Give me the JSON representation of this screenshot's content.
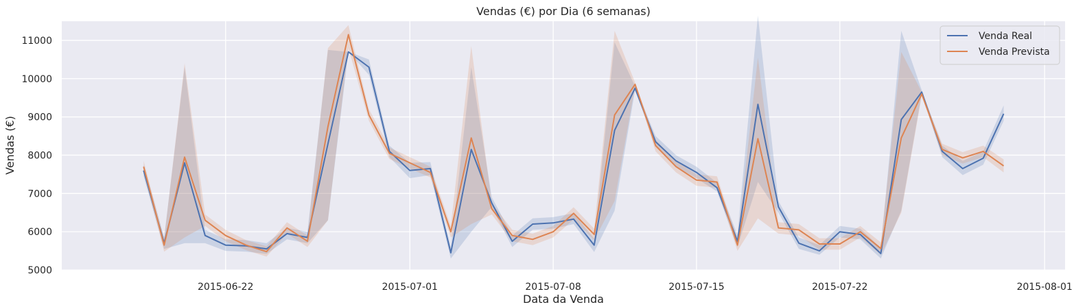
{
  "chart_data": {
    "type": "line",
    "title": "Vendas (€) por Dia (6 semanas)",
    "xlabel": "Data da Venda",
    "ylabel": "Vendas (€)",
    "ylim": [
      5000,
      11500
    ],
    "xlim": [
      "2015-06-14",
      "2015-08-02"
    ],
    "x_ticks": [
      "2015-06-22",
      "2015-07-01",
      "2015-07-08",
      "2015-07-15",
      "2015-07-22",
      "2015-08-01"
    ],
    "y_ticks": [
      5000,
      6000,
      7000,
      8000,
      9000,
      10000,
      11000
    ],
    "grid": true,
    "legend_position": "top-right",
    "x": [
      "2015-06-18",
      "2015-06-19",
      "2015-06-20",
      "2015-06-21",
      "2015-06-22",
      "2015-06-23",
      "2015-06-24",
      "2015-06-25",
      "2015-06-26",
      "2015-06-27",
      "2015-06-28",
      "2015-06-29",
      "2015-06-30",
      "2015-07-01",
      "2015-07-02",
      "2015-07-03",
      "2015-07-04",
      "2015-07-05",
      "2015-07-06",
      "2015-07-07",
      "2015-07-08",
      "2015-07-09",
      "2015-07-10",
      "2015-07-11",
      "2015-07-12",
      "2015-07-13",
      "2015-07-14",
      "2015-07-15",
      "2015-07-16",
      "2015-07-17",
      "2015-07-18",
      "2015-07-19",
      "2015-07-20",
      "2015-07-21",
      "2015-07-22",
      "2015-07-23",
      "2015-07-24",
      "2015-07-25",
      "2015-07-26",
      "2015-07-27",
      "2015-07-28",
      "2015-07-29",
      "2015-07-30",
      "2015-07-31"
    ],
    "series": [
      {
        "name": "Venda Real",
        "color": "#4c72b0",
        "values": [
          7600,
          5700,
          7800,
          5900,
          5650,
          5630,
          5550,
          5950,
          5850,
          8300,
          10700,
          10300,
          8100,
          7600,
          7650,
          5450,
          8150,
          6750,
          5750,
          6200,
          6230,
          6330,
          5650,
          8650,
          9750,
          8350,
          7850,
          7550,
          7150,
          5750,
          9330,
          6650,
          5700,
          5500,
          6000,
          5930,
          5430,
          8930,
          9650,
          8100,
          7650,
          7920,
          9080,
          null
        ],
        "lower": [
          7450,
          5550,
          5700,
          5700,
          5500,
          5480,
          5420,
          5800,
          5700,
          6300,
          10700,
          10100,
          7950,
          7400,
          7480,
          5300,
          6000,
          6650,
          5600,
          6050,
          6080,
          6200,
          5470,
          6550,
          9700,
          8250,
          7700,
          7400,
          7050,
          5600,
          7300,
          6500,
          5550,
          5400,
          5850,
          5800,
          5300,
          6550,
          9600,
          7950,
          7480,
          7750,
          8900,
          null
        ],
        "upper": [
          7750,
          5850,
          10300,
          6050,
          5800,
          5780,
          5700,
          6100,
          6000,
          10750,
          10700,
          10500,
          8250,
          7800,
          7820,
          5600,
          10300,
          6900,
          5900,
          6350,
          6380,
          6480,
          5820,
          10950,
          9800,
          8500,
          8000,
          7700,
          7280,
          5920,
          11650,
          6800,
          5850,
          5650,
          6150,
          6080,
          5580,
          11250,
          9700,
          8250,
          7850,
          8100,
          9300,
          null
        ]
      },
      {
        "name": "Venda Prevista",
        "color": "#dd8452",
        "values": [
          7700,
          5650,
          7950,
          6300,
          5900,
          5650,
          5480,
          6100,
          5750,
          8750,
          11150,
          9050,
          8050,
          7800,
          7550,
          6000,
          8450,
          6600,
          5900,
          5800,
          6000,
          6480,
          5930,
          9050,
          9850,
          8250,
          7700,
          7350,
          7300,
          5650,
          8430,
          6100,
          6050,
          5680,
          5680,
          6000,
          5560,
          8450,
          9600,
          8150,
          7930,
          8100,
          7720,
          null
        ],
        "lower": [
          7550,
          5480,
          5850,
          6150,
          5750,
          5520,
          5350,
          5950,
          5600,
          6300,
          10800,
          8900,
          7900,
          7650,
          7420,
          5850,
          6200,
          6450,
          5750,
          5650,
          5850,
          6320,
          5780,
          6800,
          9800,
          8100,
          7550,
          7200,
          7150,
          5500,
          6350,
          5950,
          5900,
          5530,
          5530,
          5850,
          5400,
          6500,
          9550,
          8000,
          7780,
          7950,
          7550,
          null
        ],
        "upper": [
          7850,
          5820,
          10400,
          6450,
          6050,
          5780,
          5620,
          6250,
          5900,
          10800,
          11400,
          9200,
          8200,
          7950,
          7700,
          6150,
          10850,
          6750,
          6050,
          5950,
          6150,
          6640,
          6080,
          11250,
          9900,
          8400,
          7850,
          7500,
          7450,
          5800,
          10550,
          6250,
          6200,
          5830,
          5830,
          6150,
          5720,
          10700,
          9650,
          8300,
          8080,
          8250,
          7890,
          null
        ]
      }
    ]
  }
}
